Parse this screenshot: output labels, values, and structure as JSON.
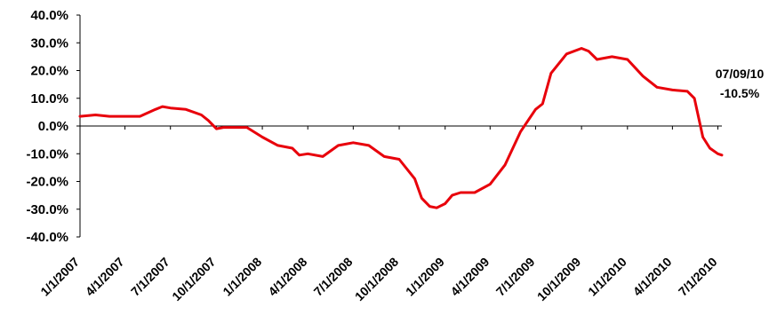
{
  "chart_data": {
    "type": "line",
    "color": "#e8000b",
    "ylim": [
      -40,
      40
    ],
    "y_ticks": [
      "40.0%",
      "30.0%",
      "20.0%",
      "10.0%",
      "0.0%",
      "-10.0%",
      "-20.0%",
      "-30.0%",
      "-40.0%"
    ],
    "x_ticks": [
      "1/1/2007",
      "4/1/2007",
      "7/1/2007",
      "10/1/2007",
      "1/1/2008",
      "4/1/2008",
      "7/1/2008",
      "10/1/2008",
      "1/1/2009",
      "4/1/2009",
      "7/1/2009",
      "10/1/2009",
      "1/1/2010",
      "4/1/2010",
      "7/1/2010"
    ],
    "annotation": {
      "date": "07/09/10",
      "value": "-10.5%"
    },
    "series": [
      {
        "x": [
          "2007-01-01",
          "2007-02-01",
          "2007-03-01",
          "2007-04-01",
          "2007-05-01",
          "2007-06-01",
          "2007-06-15",
          "2007-07-01",
          "2007-08-01",
          "2007-09-01",
          "2007-09-15",
          "2007-10-01",
          "2007-10-15",
          "2007-11-01",
          "2007-12-01",
          "2008-01-01",
          "2008-02-01",
          "2008-03-01",
          "2008-03-15",
          "2008-04-01",
          "2008-05-01",
          "2008-06-01",
          "2008-07-01",
          "2008-08-01",
          "2008-09-01",
          "2008-10-01",
          "2008-11-01",
          "2008-11-15",
          "2008-12-01",
          "2008-12-15",
          "2009-01-01",
          "2009-01-15",
          "2009-02-01",
          "2009-03-01",
          "2009-04-01",
          "2009-05-01",
          "2009-06-01",
          "2009-07-01",
          "2009-07-15",
          "2009-08-01",
          "2009-09-01",
          "2009-10-01",
          "2009-10-15",
          "2009-11-01",
          "2009-12-01",
          "2010-01-01",
          "2010-02-01",
          "2010-03-01",
          "2010-04-01",
          "2010-05-01",
          "2010-05-15",
          "2010-06-01",
          "2010-06-15",
          "2010-07-01",
          "2010-07-09"
        ],
        "y": [
          3.5,
          4.0,
          3.5,
          3.5,
          3.5,
          6.0,
          7.0,
          6.5,
          6.0,
          4.0,
          2.0,
          -1.0,
          -0.5,
          -0.5,
          -0.5,
          -4.0,
          -7.0,
          -8.0,
          -10.5,
          -10.0,
          -11.0,
          -7.0,
          -6.0,
          -7.0,
          -11.0,
          -12.0,
          -19.0,
          -26.0,
          -29.0,
          -29.5,
          -28.0,
          -25.0,
          -24.0,
          -24.0,
          -21.0,
          -14.0,
          -2.0,
          6.0,
          8.0,
          19.0,
          26.0,
          28.0,
          27.0,
          24.0,
          25.0,
          24.0,
          18.0,
          14.0,
          13.0,
          12.5,
          10.0,
          -4.0,
          -8.0,
          -10.0,
          -10.5
        ]
      }
    ]
  }
}
